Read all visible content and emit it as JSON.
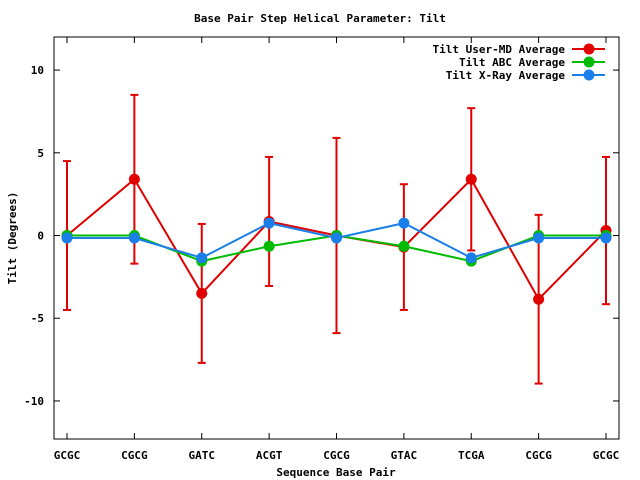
{
  "chart_data": {
    "type": "line",
    "title": "Base Pair Step Helical Parameter: Tilt",
    "xlabel": "Sequence Base Pair",
    "ylabel": "Tilt (Degrees)",
    "categories": [
      "GCGC",
      "CGCG",
      "GATC",
      "ACGT",
      "CGCG",
      "GTAC",
      "TCGA",
      "CGCG",
      "GCGC"
    ],
    "ylim": [
      -12.3,
      12
    ],
    "yticks": [
      -10,
      -5,
      0,
      5,
      10
    ],
    "grid": false,
    "legend_position": "top-right",
    "series": [
      {
        "name": "Tilt User-MD Average",
        "color": "#e00000",
        "values": [
          0.0,
          3.4,
          -3.5,
          0.85,
          0.0,
          -0.7,
          3.4,
          -3.85,
          0.3
        ],
        "error": [
          4.5,
          5.1,
          4.2,
          3.9,
          5.9,
          3.8,
          4.3,
          5.1,
          4.45
        ]
      },
      {
        "name": "Tilt ABC Average",
        "color": "#00bb00",
        "values": [
          0.0,
          0.0,
          -1.55,
          -0.65,
          0.0,
          -0.65,
          -1.55,
          0.0,
          0.0
        ]
      },
      {
        "name": "Tilt X-Ray Average",
        "color": "#1a7fe8",
        "values": [
          -0.15,
          -0.15,
          -1.35,
          0.75,
          -0.15,
          0.75,
          -1.35,
          -0.15,
          -0.15
        ]
      }
    ]
  }
}
